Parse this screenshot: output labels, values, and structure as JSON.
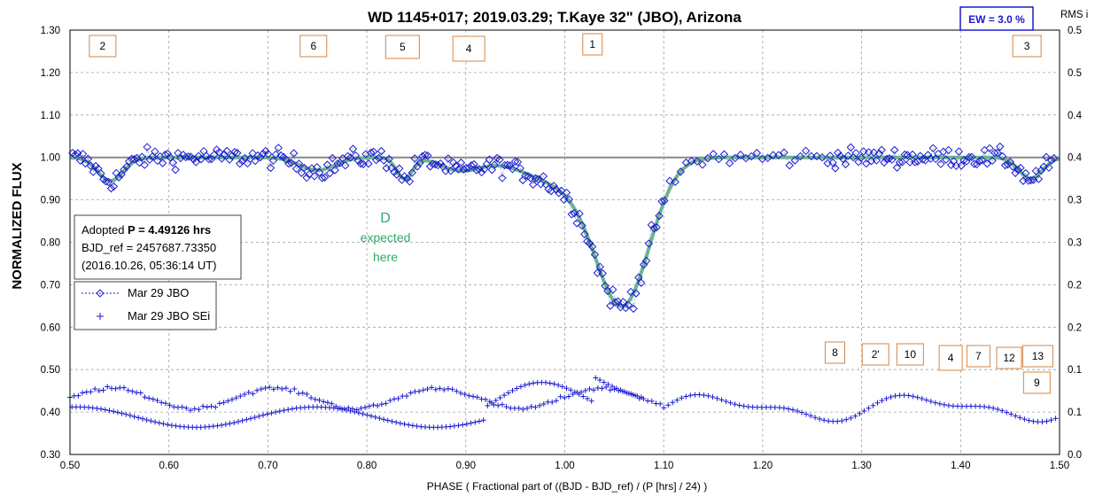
{
  "chart_data": {
    "type": "scatter",
    "title": "WD 1145+017; 2019.03.29; T.Kaye 32\" (JBO), Arizona",
    "xlabel": "PHASE ( Fractional part of ((BJD - BJD_ref) / (P [hrs] / 24) )",
    "ylabel": "NORMALIZED FLUX",
    "y2label": "RMS i",
    "xlim": [
      0.5,
      1.5
    ],
    "ylim": [
      0.3,
      1.3
    ],
    "y2lim": [
      0.0,
      0.5
    ],
    "x_ticks": [
      "0.50",
      "0.60",
      "0.70",
      "0.80",
      "0.90",
      "1.00",
      "1.10",
      "1.20",
      "1.30",
      "1.40",
      "1.50"
    ],
    "y_ticks": [
      "0.30",
      "0.40",
      "0.50",
      "0.60",
      "0.70",
      "0.80",
      "0.90",
      "1.00",
      "1.10",
      "1.20",
      "1.30"
    ],
    "y2_ticks": [
      "0.0",
      "0.1",
      "0.1",
      "0.2",
      "0.2",
      "0.3",
      "0.3",
      "0.4",
      "0.4",
      "0.5",
      "0.5"
    ],
    "grid": true,
    "reference_line": 1.0,
    "ew_label": "EW =  3.0 %",
    "info_box": {
      "line1_prefix": "Adopted ",
      "line1_bold": "P = 4.49126 hrs",
      "line2": "BJD_ref = 2457687.73350",
      "line3": "(2016.10.26, 05:36:14 UT)"
    },
    "legend": {
      "placement": "left",
      "entries": [
        "Mar 29 JBO",
        "Mar 29 JBO SEi"
      ]
    },
    "d_annotation": {
      "line1": "D",
      "line2": "expected",
      "line3": "here"
    },
    "dip_labels_top": [
      {
        "label": "2",
        "x": 0.533
      },
      {
        "label": "6",
        "x": 0.746
      },
      {
        "label": "5",
        "x": 0.836
      },
      {
        "label": "4",
        "x": 0.903
      },
      {
        "label": "1",
        "x": 1.028
      },
      {
        "label": "3",
        "x": 1.467
      }
    ],
    "dip_labels_bottom": [
      {
        "label": "8",
        "x": 1.273
      },
      {
        "label": "2'",
        "x": 1.314
      },
      {
        "label": "10",
        "x": 1.349
      },
      {
        "label": "4",
        "x": 1.39
      },
      {
        "label": "7",
        "x": 1.418
      },
      {
        "label": "12",
        "x": 1.449
      },
      {
        "label": "13",
        "x": 1.478
      },
      {
        "label": "9",
        "x": 1.477
      }
    ],
    "model_dips": [
      {
        "center": 0.541,
        "depth": 0.055,
        "width": 0.013
      },
      {
        "center": 0.75,
        "depth": 0.03,
        "width": 0.018
      },
      {
        "center": 0.838,
        "depth": 0.05,
        "width": 0.008
      },
      {
        "center": 0.895,
        "depth": 0.03,
        "width": 0.02
      },
      {
        "center": 1.059,
        "depth": 0.33,
        "width": 0.027
      },
      {
        "center": 1.0,
        "depth": 0.06,
        "width": 0.04
      },
      {
        "center": 1.471,
        "depth": 0.05,
        "width": 0.012
      }
    ],
    "colors": {
      "data": "#1a1acf",
      "model": "#6eb38f",
      "reference": "#888888",
      "boxes": "#d2874a",
      "grid": "#a0a0a0",
      "dlabel": "#2eab6a"
    }
  }
}
